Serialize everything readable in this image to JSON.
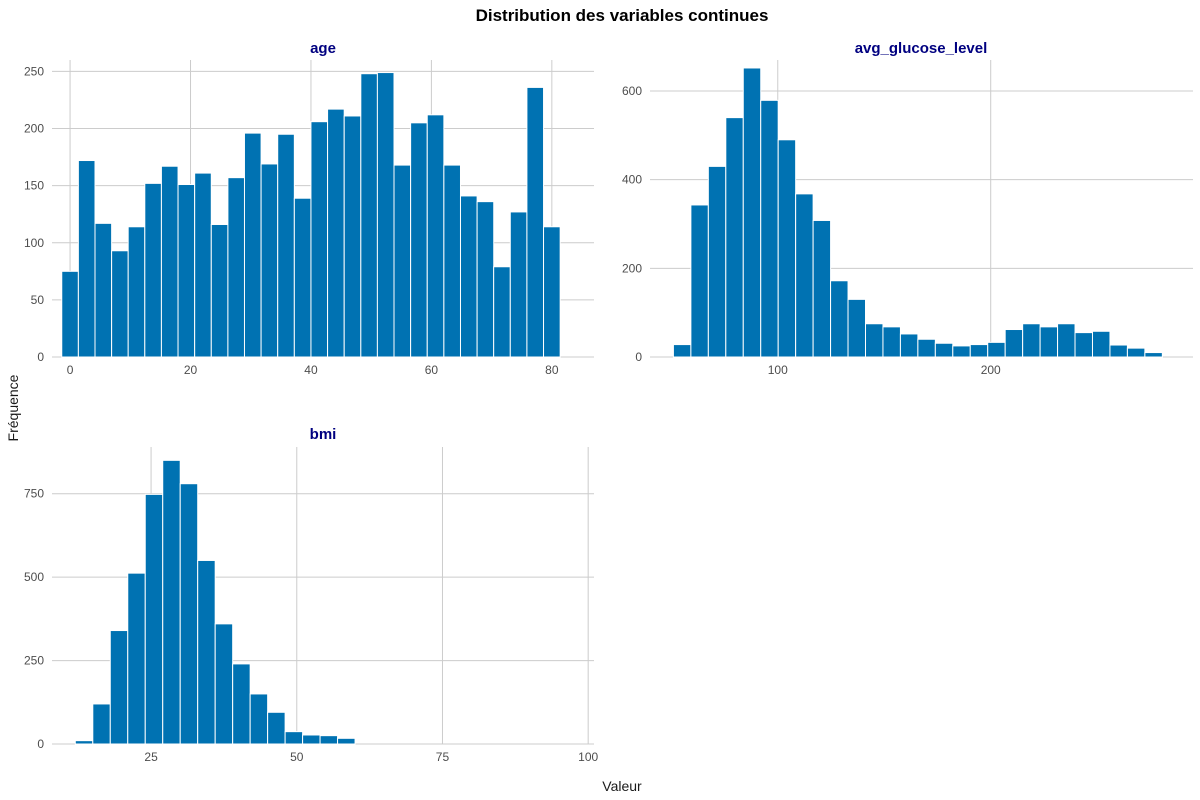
{
  "title": "Distribution des variables continues",
  "xlabel": "Valeur",
  "ylabel": "Fréquence",
  "bar_color": "#0072B2",
  "bar_outline": "#ffffff",
  "chart_data": [
    {
      "type": "bar",
      "title": "age",
      "bin_width": 2.76,
      "x_centers": [
        0.0,
        2.76,
        5.52,
        8.28,
        11.03,
        13.79,
        16.55,
        19.31,
        22.07,
        24.83,
        27.59,
        30.34,
        33.1,
        35.86,
        38.62,
        41.38,
        44.14,
        46.9,
        49.66,
        52.41,
        55.17,
        57.93,
        60.69,
        63.45,
        66.21,
        68.97,
        71.72,
        74.48,
        77.24,
        80.0,
        82.76
      ],
      "values": [
        75,
        172,
        117,
        93,
        114,
        152,
        167,
        151,
        161,
        116,
        157,
        196,
        169,
        195,
        139,
        206,
        217,
        211,
        248,
        249,
        168,
        205,
        212,
        168,
        141,
        136,
        79,
        127,
        236,
        114,
        0
      ],
      "xticks": [
        0,
        20,
        40,
        60,
        80
      ],
      "yticks": [
        0,
        50,
        100,
        150,
        200,
        250
      ],
      "xlim": [
        -3,
        87
      ],
      "ylim": [
        0,
        260
      ]
    },
    {
      "type": "bar",
      "title": "avg_glucose_level",
      "bin_width": 8.2,
      "x_centers": [
        55.1,
        63.3,
        71.5,
        79.7,
        87.9,
        96.1,
        104.3,
        112.5,
        120.7,
        128.9,
        137.1,
        145.3,
        153.5,
        161.7,
        169.9,
        178.1,
        186.3,
        194.5,
        202.7,
        210.9,
        219.1,
        227.3,
        235.5,
        243.7,
        251.9,
        260.1,
        268.3,
        276.5
      ],
      "values": [
        28,
        343,
        430,
        540,
        652,
        579,
        490,
        368,
        308,
        172,
        130,
        75,
        68,
        52,
        40,
        31,
        25,
        28,
        33,
        62,
        75,
        68,
        75,
        55,
        58,
        27,
        20,
        10
      ],
      "xticks": [
        100,
        200
      ],
      "yticks": [
        0,
        200,
        400,
        600
      ],
      "xlim": [
        40,
        295
      ],
      "ylim": [
        0,
        670
      ]
    },
    {
      "type": "bar",
      "title": "bmi",
      "bin_width": 3.0,
      "x_centers": [
        13.5,
        16.5,
        19.5,
        22.5,
        25.5,
        28.5,
        31.5,
        34.5,
        37.5,
        40.5,
        43.5,
        46.5,
        49.5,
        52.5,
        55.5,
        58.5
      ],
      "values": [
        10,
        120,
        340,
        512,
        748,
        850,
        780,
        550,
        360,
        240,
        150,
        95,
        37,
        27,
        25,
        17
      ],
      "xticks": [
        25,
        50,
        75,
        100
      ],
      "yticks": [
        0,
        250,
        500,
        750
      ],
      "xlim": [
        8,
        101
      ],
      "ylim": [
        0,
        890
      ]
    }
  ]
}
